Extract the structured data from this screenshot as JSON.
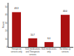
{
  "chart_data": {
    "type": "bar",
    "ylabel": "Percent",
    "categories": [
      "Therapeutic\nservices only",
      "SUD medications\nand Therapeutic\nservices",
      "SUD medications\nonly",
      "No follow-up\nservices"
    ],
    "values": [
      43.3,
      10.7,
      6.0,
      40.0
    ],
    "value_labels": [
      "43.3",
      "10.7",
      "6.0",
      "40.0"
    ],
    "data_labels": true,
    "color": "#aa1111",
    "ylim": [
      0,
      55
    ],
    "yticks": [
      0,
      10,
      20,
      30,
      40,
      50
    ],
    "grid": false
  }
}
